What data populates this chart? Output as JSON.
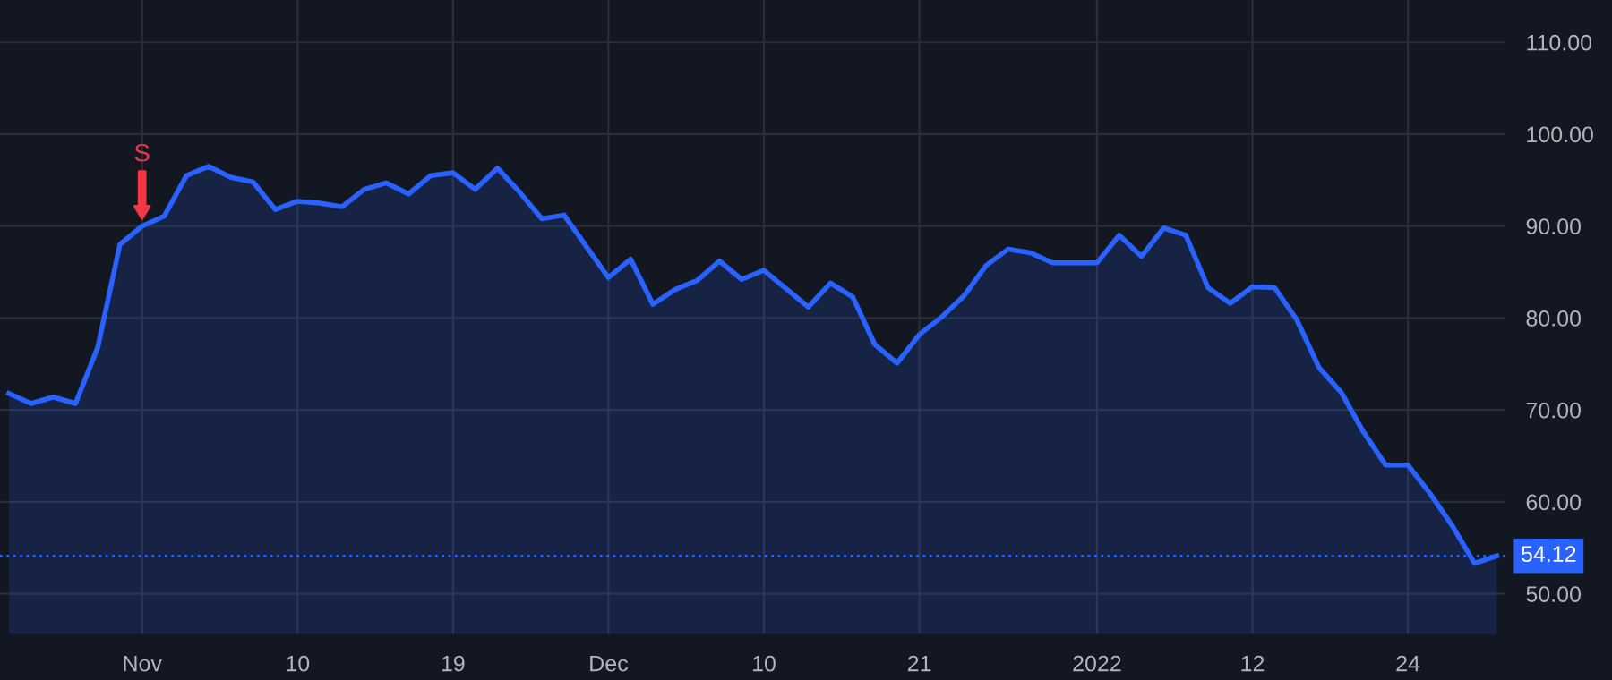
{
  "chart_data": {
    "type": "area",
    "categories": [
      null,
      null,
      null,
      null,
      null,
      null,
      "Nov",
      null,
      null,
      null,
      null,
      null,
      null,
      "10",
      null,
      null,
      null,
      null,
      null,
      null,
      "19",
      null,
      null,
      null,
      null,
      null,
      null,
      "Dec",
      null,
      null,
      null,
      null,
      null,
      null,
      "10",
      null,
      null,
      null,
      null,
      null,
      null,
      "21",
      null,
      null,
      null,
      null,
      null,
      null,
      null,
      "2022",
      null,
      null,
      null,
      null,
      null,
      null,
      "12",
      null,
      null,
      null,
      null,
      null,
      null,
      "24",
      null,
      null,
      null,
      null
    ],
    "series": [
      {
        "color": "#2962ff",
        "values": [
          71.8,
          70.7,
          71.4,
          70.7,
          76.8,
          88.0,
          90.0,
          91.1,
          95.5,
          96.5,
          95.3,
          94.8,
          91.8,
          92.7,
          92.5,
          92.1,
          94.0,
          94.7,
          93.5,
          95.5,
          95.8,
          94.0,
          96.3,
          93.7,
          90.8,
          91.2,
          87.8,
          84.4,
          86.4,
          81.5,
          83.1,
          84.1,
          86.2,
          84.2,
          85.2,
          83.2,
          81.2,
          83.8,
          82.3,
          77.1,
          75.1,
          78.2,
          80.1,
          82.4,
          85.7,
          87.5,
          87.1,
          86.0,
          86.0,
          86.0,
          89.0,
          86.7,
          89.8,
          89.0,
          83.3,
          81.6,
          83.4,
          83.3,
          79.8,
          74.6,
          71.9,
          67.6,
          64.0,
          64.0,
          60.9,
          57.4,
          53.3,
          54.12
        ]
      }
    ],
    "ylim": [
      45.5,
      114.6
    ],
    "yticks": [
      {
        "value": 50,
        "label": "50.00"
      },
      {
        "value": 60,
        "label": "60.00"
      },
      {
        "value": 70,
        "label": "70.00"
      },
      {
        "value": 80,
        "label": "80.00"
      },
      {
        "value": 90,
        "label": "90.00"
      },
      {
        "value": 100,
        "label": "100.00"
      },
      {
        "value": 110,
        "label": "110.00"
      }
    ],
    "ref_lines": [
      {
        "axis": "y",
        "value": 54.12,
        "label": "54.12",
        "color": "#2962ff",
        "line_style": "dotted"
      }
    ],
    "annotations": [
      {
        "text": "S",
        "x": "Nov",
        "y": 90.0
      }
    ],
    "grid": true,
    "legend": false
  }
}
